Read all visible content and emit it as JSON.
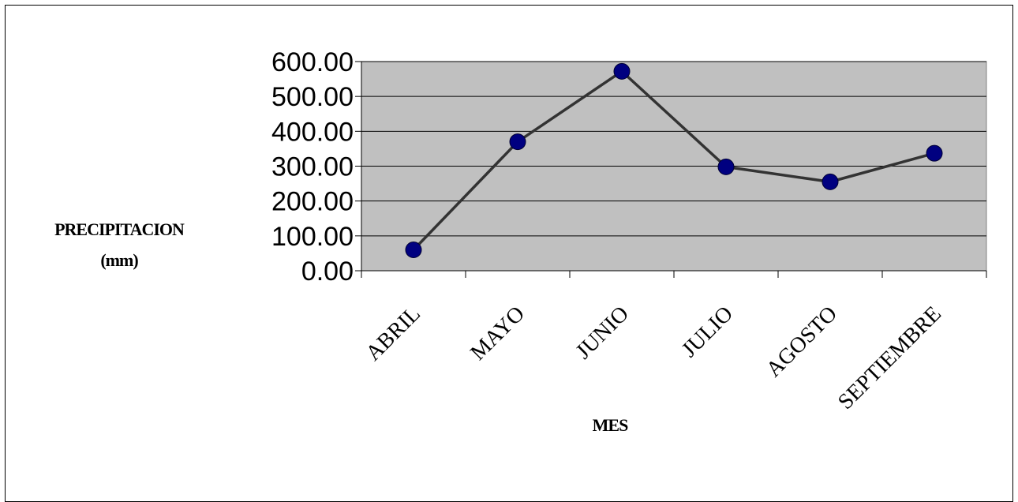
{
  "chart_data": {
    "type": "line",
    "categories": [
      "ABRIL",
      "MAYO",
      "JUNIO",
      "JULIO",
      "AGOSTO",
      "SEPTIEMBRE"
    ],
    "series": [
      {
        "values": [
          60,
          370,
          572,
          298,
          255,
          337
        ]
      }
    ],
    "yticks": [
      "0.00",
      "100.00",
      "200.00",
      "300.00",
      "400.00",
      "500.00",
      "600.00"
    ],
    "ylim": [
      0,
      600
    ],
    "ylabel_line1": "PRECIPITACION",
    "ylabel_line2": "(mm)",
    "xlabel": "MES",
    "grid": true,
    "colors": {
      "plot_background": "#c0c0c0",
      "line": "#333333",
      "marker": "#000080",
      "gridline": "#000000"
    }
  }
}
